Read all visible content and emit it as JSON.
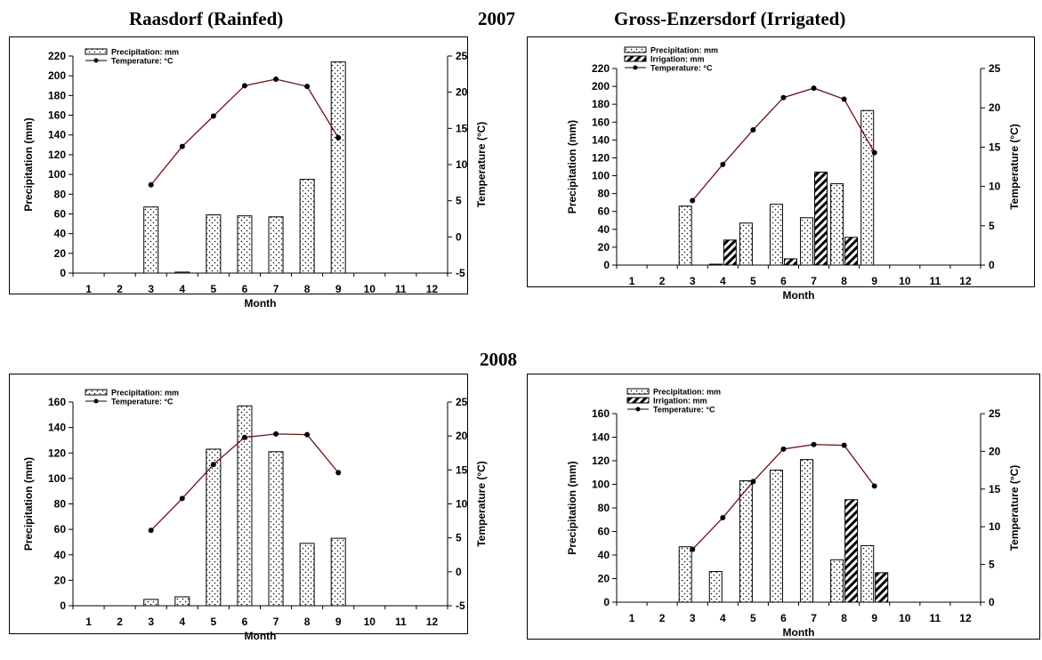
{
  "headers": {
    "left_site": "Raasdorf (Rainfed)",
    "right_site": "Gross-Enzersdorf (Irrigated)",
    "year_2007": "2007",
    "year_2008": "2008"
  },
  "chart_data": [
    {
      "type": "bar",
      "site": "Raasdorf (Rainfed)",
      "year": "2007",
      "categories": [
        "1",
        "2",
        "3",
        "4",
        "5",
        "6",
        "7",
        "8",
        "9",
        "10",
        "11",
        "12"
      ],
      "xlabel": "Month",
      "ylabel": "Precipitation (mm)",
      "y2label": "Temperature (°C)",
      "ylim": [
        0,
        220
      ],
      "ystep": 20,
      "y2lim": [
        -5,
        25
      ],
      "y2step": 5,
      "legend": [
        "Precipitation:  mm",
        "Temperature:  °C"
      ],
      "legend_position": "top-left",
      "series": [
        {
          "name": "Precipitation:  mm",
          "kind": "bar",
          "pattern": "dots",
          "axis": "left",
          "values": [
            null,
            null,
            67,
            1,
            59,
            58,
            57,
            95,
            214,
            null,
            null,
            null
          ]
        },
        {
          "name": "Temperature:  °C",
          "kind": "line",
          "axis": "right",
          "values": [
            null,
            null,
            7.2,
            12.5,
            16.7,
            20.9,
            21.8,
            20.8,
            13.7,
            null,
            null,
            null
          ]
        }
      ]
    },
    {
      "type": "bar",
      "site": "Gross-Enzersdorf (Irrigated)",
      "year": "2007",
      "categories": [
        "1",
        "2",
        "3",
        "4",
        "5",
        "6",
        "7",
        "8",
        "9",
        "10",
        "11",
        "12"
      ],
      "xlabel": "Month",
      "ylabel": "Precipitation (mm)",
      "y2label": "Temperature (°C)",
      "ylim": [
        0,
        220
      ],
      "ystep": 20,
      "y2lim": [
        0,
        25
      ],
      "y2step": 5,
      "legend": [
        "Precipitation:  mm",
        "Irrigation:  mm",
        "Temperature:  °C"
      ],
      "legend_position": "top-left",
      "series": [
        {
          "name": "Precipitation:  mm",
          "kind": "bar",
          "pattern": "dots",
          "axis": "left",
          "values": [
            null,
            null,
            66,
            1,
            47,
            68,
            53,
            91,
            173,
            null,
            null,
            null
          ]
        },
        {
          "name": "Irrigation:  mm",
          "kind": "bar",
          "pattern": "hatch",
          "axis": "left",
          "values": [
            null,
            null,
            null,
            28,
            null,
            7,
            104,
            31,
            null,
            null,
            null,
            null
          ]
        },
        {
          "name": "Temperature:  °C",
          "kind": "line",
          "axis": "right",
          "values": [
            null,
            null,
            8.2,
            12.8,
            17.2,
            21.3,
            22.5,
            21.1,
            14.3,
            null,
            null,
            null
          ]
        }
      ]
    },
    {
      "type": "bar",
      "site": "Raasdorf (Rainfed)",
      "year": "2008",
      "categories": [
        "1",
        "2",
        "3",
        "4",
        "5",
        "6",
        "7",
        "8",
        "9",
        "10",
        "11",
        "12"
      ],
      "xlabel": "Month",
      "ylabel": "Precipitation (mm)",
      "y2label": "Temperature (°C)",
      "ylim": [
        0,
        160
      ],
      "ystep": 20,
      "y2lim": [
        -5,
        25
      ],
      "y2step": 5,
      "legend": [
        "Precipitation:  mm",
        "Temperature:  °C"
      ],
      "legend_position": "top-left",
      "series": [
        {
          "name": "Precipitation:  mm",
          "kind": "bar",
          "pattern": "dots",
          "axis": "left",
          "values": [
            null,
            null,
            5,
            7,
            123,
            157,
            121,
            49,
            53,
            null,
            null,
            null
          ]
        },
        {
          "name": "Temperature:  °C",
          "kind": "line",
          "axis": "right",
          "values": [
            null,
            null,
            6.1,
            10.8,
            15.8,
            19.8,
            20.3,
            20.2,
            14.6,
            null,
            null,
            null
          ]
        }
      ]
    },
    {
      "type": "bar",
      "site": "Gross-Enzersdorf (Irrigated)",
      "year": "2008",
      "categories": [
        "1",
        "2",
        "3",
        "4",
        "5",
        "6",
        "7",
        "8",
        "9",
        "10",
        "11",
        "12"
      ],
      "xlabel": "Month",
      "ylabel": "Precipitation (mm)",
      "y2label": "Temperature (°C)",
      "ylim": [
        0,
        160
      ],
      "ystep": 20,
      "y2lim": [
        0,
        25
      ],
      "y2step": 5,
      "legend": [
        "Precipitation:  mm",
        "Irrigation:  mm",
        "Temperature:  °C"
      ],
      "legend_position": "top-left",
      "series": [
        {
          "name": "Precipitation:  mm",
          "kind": "bar",
          "pattern": "dots",
          "axis": "left",
          "values": [
            null,
            null,
            47,
            26,
            103,
            112,
            121,
            36,
            48,
            null,
            null,
            null
          ]
        },
        {
          "name": "Irrigation:  mm",
          "kind": "bar",
          "pattern": "hatch",
          "axis": "left",
          "values": [
            null,
            null,
            null,
            null,
            null,
            null,
            null,
            87,
            25,
            null,
            null,
            null
          ]
        },
        {
          "name": "Temperature:  °C",
          "kind": "line",
          "axis": "right",
          "values": [
            null,
            null,
            7.0,
            11.2,
            16.0,
            20.3,
            20.9,
            20.8,
            15.4,
            null,
            null,
            null
          ]
        }
      ]
    }
  ],
  "colors": {
    "temperature_line": "#6b0f0f",
    "marker": "#000000",
    "bar_fill": "#ffffff",
    "frame": "#000000"
  }
}
